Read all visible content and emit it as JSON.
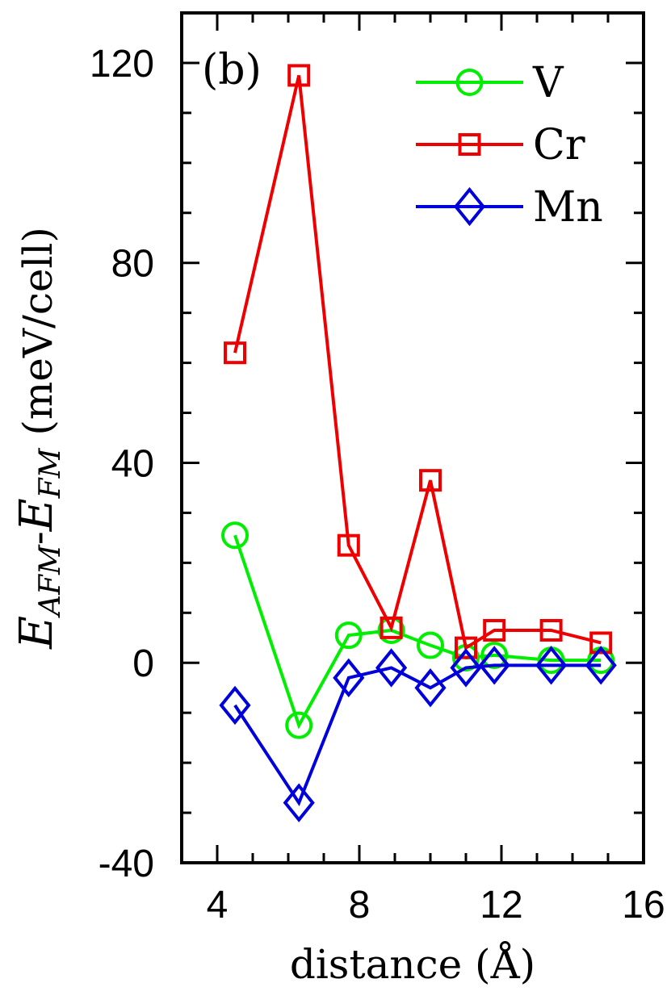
{
  "chart_data": {
    "type": "line",
    "panel_label": "(b)",
    "xlabel": "distance (Å)",
    "ylabel": {
      "base": "E",
      "sub1": "AFM",
      "sep": "-",
      "sub2": "FM",
      "unit": " (meV/cell)"
    },
    "xlim": [
      3,
      16
    ],
    "ylim": [
      -40,
      130
    ],
    "x_ticks": [
      4,
      8,
      12,
      16
    ],
    "x_tick_labels": [
      "4",
      "8",
      "12",
      "16"
    ],
    "y_ticks": [
      -40,
      0,
      40,
      80,
      120
    ],
    "y_tick_labels": [
      "-40",
      "0",
      "40",
      "80",
      "120"
    ],
    "legend_position": "top-right",
    "grid": false,
    "series": [
      {
        "name": "V",
        "color": "#00ee00",
        "marker": "circle",
        "x": [
          4.5,
          6.3,
          7.7,
          8.9,
          10.0,
          11.0,
          11.8,
          13.4,
          14.8
        ],
        "y": [
          25.5,
          -12.5,
          5.5,
          6.5,
          3.5,
          1.0,
          1.5,
          0.5,
          0.5
        ]
      },
      {
        "name": "Cr",
        "color": "#ee0000",
        "marker": "square",
        "x": [
          4.5,
          6.3,
          7.7,
          8.9,
          10.0,
          11.0,
          11.8,
          13.4,
          14.8
        ],
        "y": [
          62.0,
          117.5,
          23.5,
          7.0,
          36.5,
          3.0,
          6.5,
          6.5,
          4.0
        ]
      },
      {
        "name": "Mn",
        "color": "#0000dd",
        "marker": "diamond",
        "x": [
          4.5,
          6.3,
          7.7,
          8.9,
          10.0,
          11.0,
          11.8,
          13.4,
          14.8
        ],
        "y": [
          -8.5,
          -28.0,
          -3.0,
          -1.0,
          -5.0,
          -1.0,
          -0.5,
          -0.5,
          -0.5
        ]
      }
    ]
  }
}
